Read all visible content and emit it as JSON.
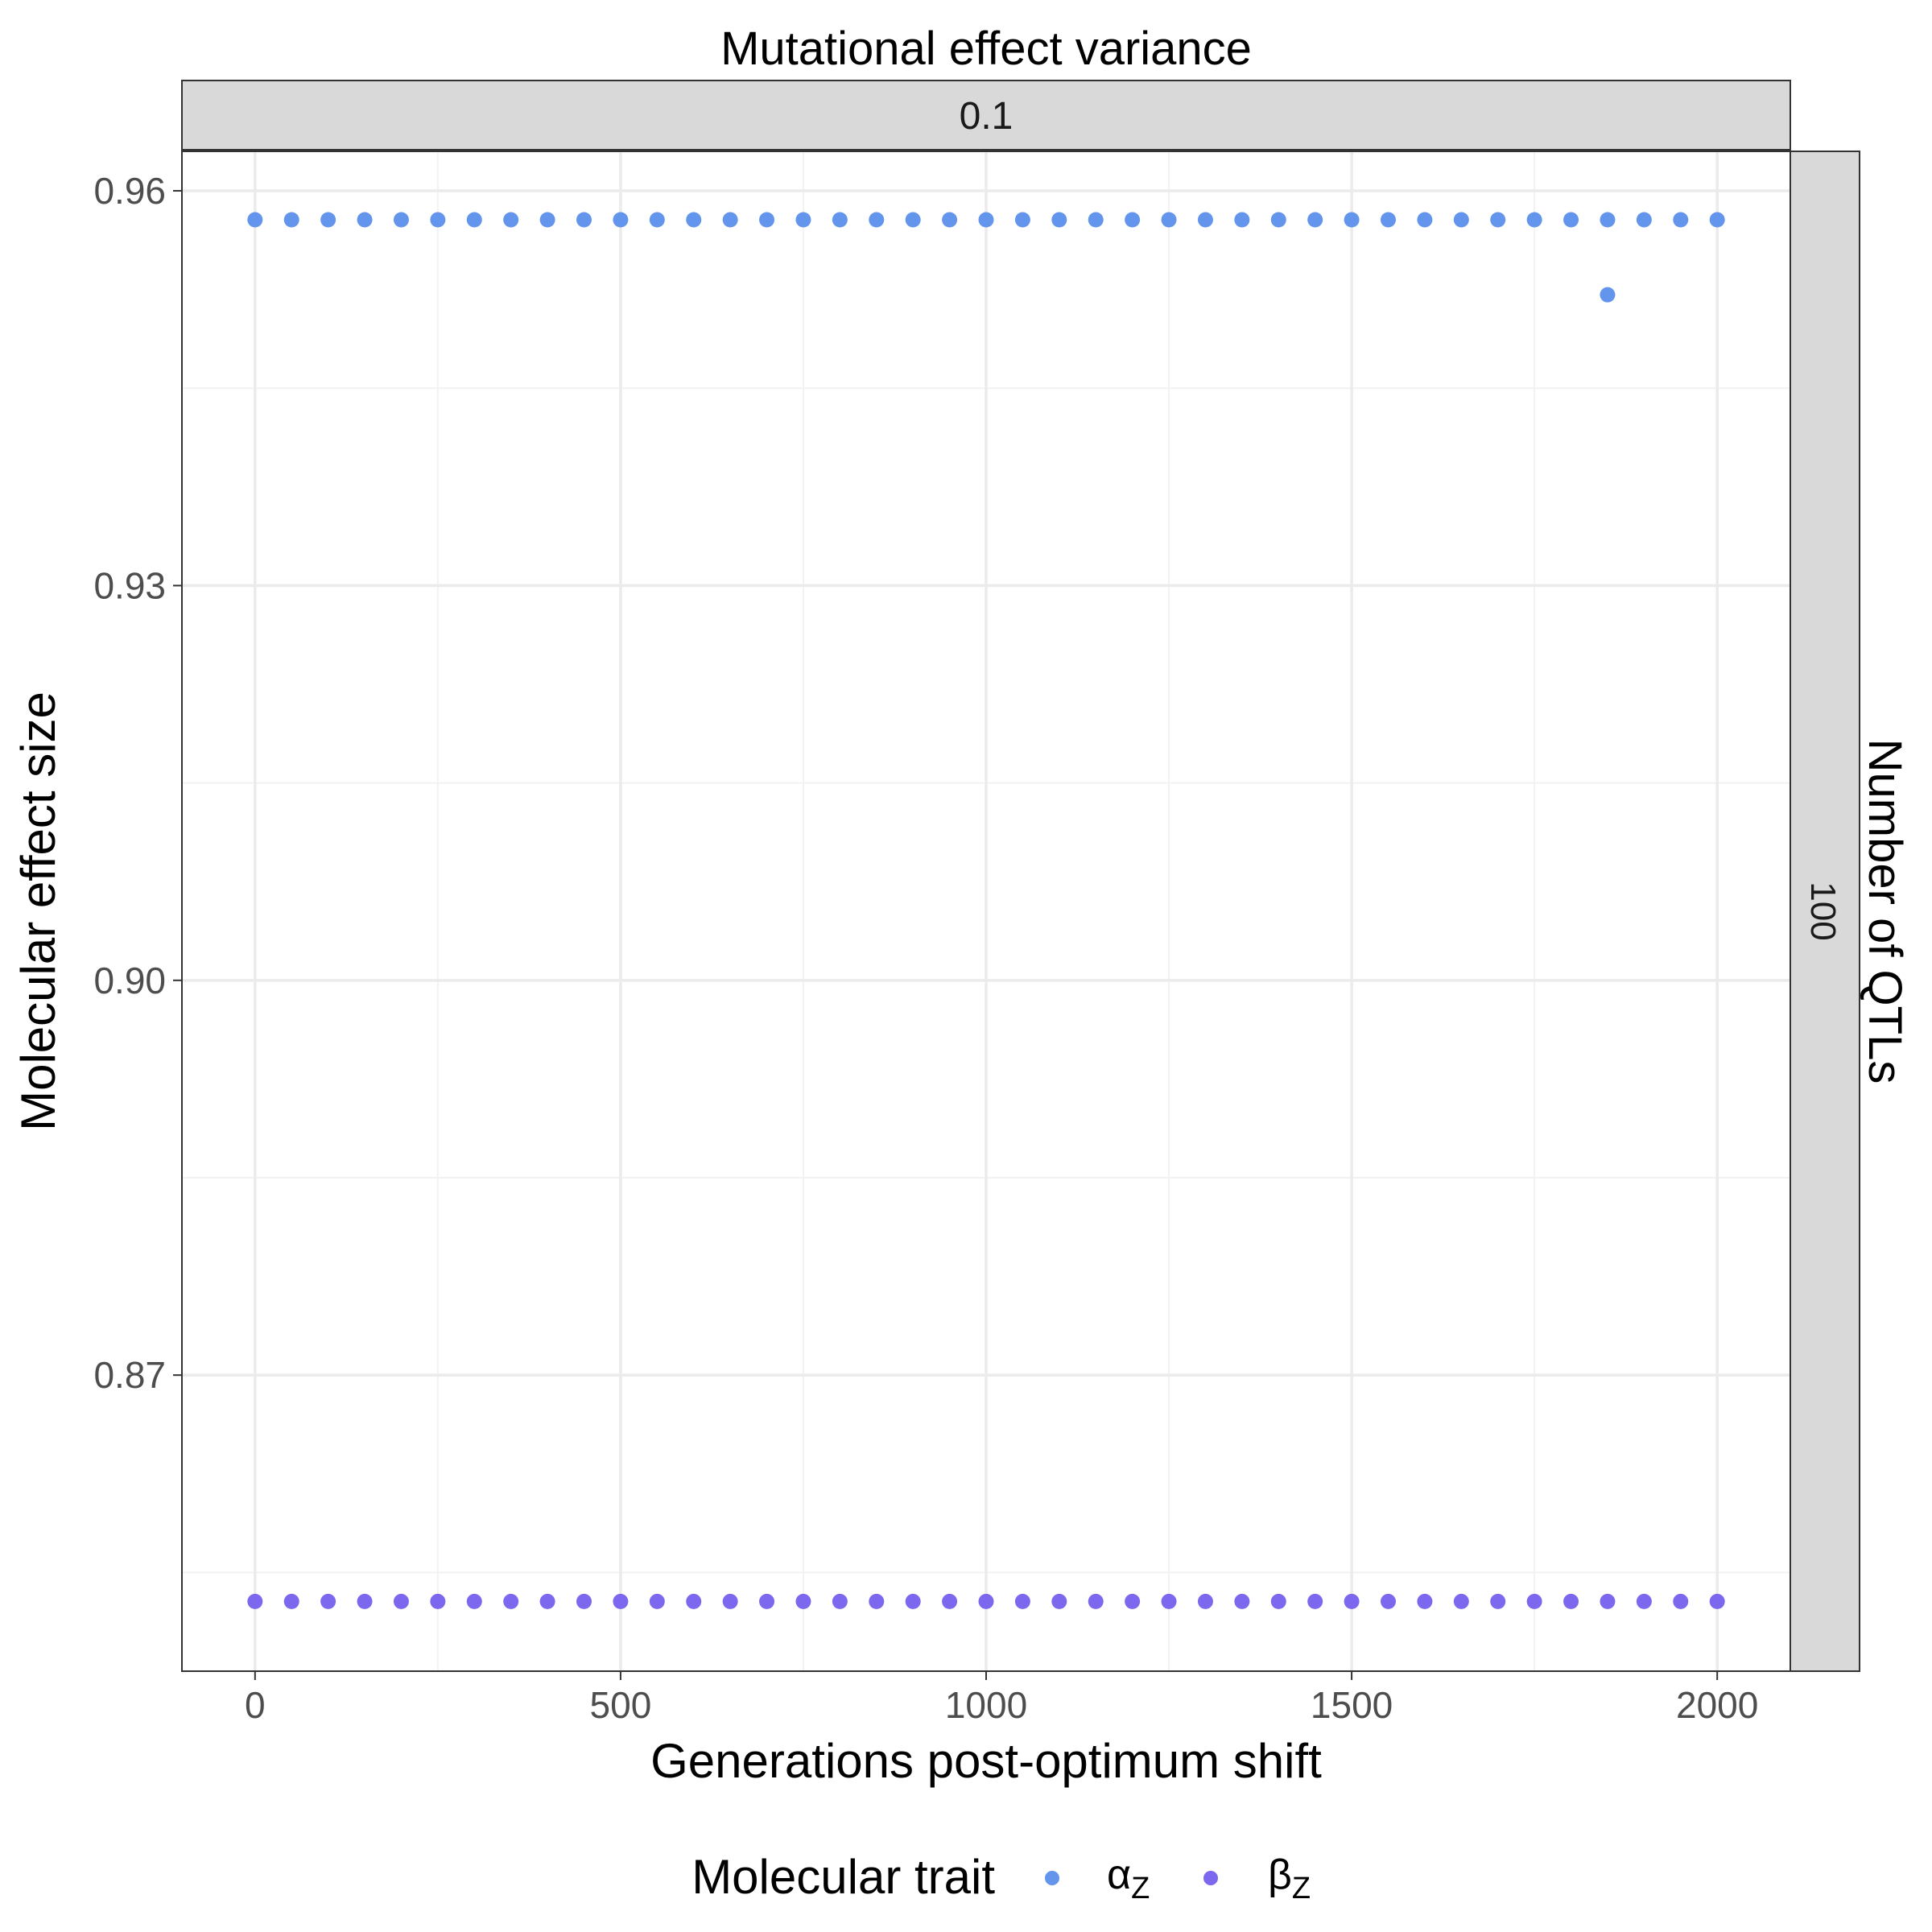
{
  "top_strip": {
    "title": "Mutational effect variance",
    "label": "0.1"
  },
  "right_strip": {
    "title": "Number of QTLs",
    "label": "100"
  },
  "legend": {
    "title": "Molecular trait",
    "items": [
      {
        "base": "α",
        "sub": "Z",
        "color": "#6495ED"
      },
      {
        "base": "β",
        "sub": "Z",
        "color": "#7B68EE"
      }
    ]
  },
  "chart_data": {
    "type": "scatter",
    "xlabel": "Generations post-optimum shift",
    "ylabel": "Molecular effect size",
    "xlim": [
      -100,
      2100
    ],
    "ylim": [
      0.8475,
      0.963
    ],
    "x_ticks": [
      0,
      500,
      1000,
      1500,
      2000
    ],
    "x_tick_labels": [
      "0",
      "500",
      "1000",
      "1500",
      "2000"
    ],
    "y_ticks": [
      0.87,
      0.9,
      0.93,
      0.96
    ],
    "y_tick_labels": [
      "0.87",
      "0.90",
      "0.93",
      "0.96"
    ],
    "grid": true,
    "legend_position": "bottom",
    "series": [
      {
        "name": "αZ",
        "color": "#6495ED",
        "x": [
          0,
          50,
          100,
          150,
          200,
          250,
          300,
          350,
          400,
          450,
          500,
          550,
          600,
          650,
          700,
          750,
          800,
          850,
          900,
          950,
          1000,
          1050,
          1100,
          1150,
          1200,
          1250,
          1300,
          1350,
          1400,
          1450,
          1500,
          1550,
          1600,
          1650,
          1700,
          1750,
          1800,
          1850,
          1850,
          1900,
          1950,
          2000
        ],
        "y": [
          0.9578,
          0.9578,
          0.9578,
          0.9578,
          0.9578,
          0.9578,
          0.9578,
          0.9578,
          0.9578,
          0.9578,
          0.9578,
          0.9578,
          0.9578,
          0.9578,
          0.9578,
          0.9578,
          0.9578,
          0.9578,
          0.9578,
          0.9578,
          0.9578,
          0.9578,
          0.9578,
          0.9578,
          0.9578,
          0.9578,
          0.9578,
          0.9578,
          0.9578,
          0.9578,
          0.9578,
          0.9578,
          0.9578,
          0.9578,
          0.9578,
          0.9578,
          0.9578,
          0.9578,
          0.9521,
          0.9578,
          0.9578,
          0.9578
        ]
      },
      {
        "name": "βZ",
        "color": "#7B68EE",
        "x": [
          0,
          50,
          100,
          150,
          200,
          250,
          300,
          350,
          400,
          450,
          500,
          550,
          600,
          650,
          700,
          750,
          800,
          850,
          900,
          950,
          1000,
          1050,
          1100,
          1150,
          1200,
          1250,
          1300,
          1350,
          1400,
          1450,
          1500,
          1550,
          1600,
          1650,
          1700,
          1750,
          1800,
          1850,
          1900,
          1950,
          2000
        ],
        "y": [
          0.8528,
          0.8528,
          0.8528,
          0.8528,
          0.8528,
          0.8528,
          0.8528,
          0.8528,
          0.8528,
          0.8528,
          0.8528,
          0.8528,
          0.8528,
          0.8528,
          0.8528,
          0.8528,
          0.8528,
          0.8528,
          0.8528,
          0.8528,
          0.8528,
          0.8528,
          0.8528,
          0.8528,
          0.8528,
          0.8528,
          0.8528,
          0.8528,
          0.8528,
          0.8528,
          0.8528,
          0.8528,
          0.8528,
          0.8528,
          0.8528,
          0.8528,
          0.8528,
          0.8528,
          0.8528,
          0.8528,
          0.8528
        ]
      }
    ]
  }
}
